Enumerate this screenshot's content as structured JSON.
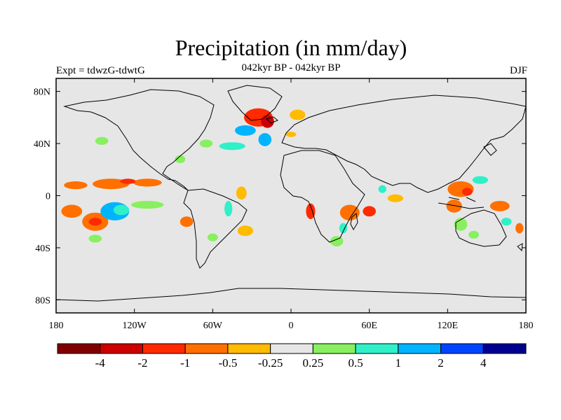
{
  "title": "Precipitation (in mm/day)",
  "subtitle": "042kyr BP - 042kyr BP",
  "left_label": "Expt = tdwzG-tdwtG",
  "right_label": "DJF",
  "map": {
    "lon_range": [
      -180,
      180
    ],
    "lat_range": [
      -90,
      90
    ],
    "background_color": "#e6e6e6",
    "y_ticks": [
      {
        "lat": 80,
        "label": "80N"
      },
      {
        "lat": 40,
        "label": "40N"
      },
      {
        "lat": 0,
        "label": "0"
      },
      {
        "lat": -40,
        "label": "40S"
      },
      {
        "lat": -80,
        "label": "80S"
      }
    ],
    "x_ticks": [
      {
        "lon": -180,
        "label": "180"
      },
      {
        "lon": -120,
        "label": "120W"
      },
      {
        "lon": -60,
        "label": "60W"
      },
      {
        "lon": 0,
        "label": "0"
      },
      {
        "lon": 60,
        "label": "60E"
      },
      {
        "lon": 120,
        "label": "120E"
      },
      {
        "lon": 180,
        "label": "180"
      }
    ]
  },
  "colorbar": {
    "colors": [
      "#800000",
      "#cc0000",
      "#ff2a00",
      "#ff7000",
      "#ffbb00",
      "#e6e6e6",
      "#88f060",
      "#30f0c8",
      "#00b4ff",
      "#0044ff",
      "#000090"
    ],
    "labels": [
      "-4",
      "-2",
      "-1",
      "-0.5",
      "-0.25",
      "0.25",
      "0.5",
      "1",
      "2",
      "4"
    ]
  },
  "anomalies": [
    {
      "lon": -165,
      "lat": 8,
      "w": 18,
      "h": 3,
      "level": 3
    },
    {
      "lon": -138,
      "lat": 9,
      "w": 28,
      "h": 4,
      "level": 3
    },
    {
      "lon": -110,
      "lat": 10,
      "w": 22,
      "h": 3,
      "level": 3
    },
    {
      "lon": -125,
      "lat": 11,
      "w": 12,
      "h": 2,
      "level": 2
    },
    {
      "lon": -168,
      "lat": -12,
      "w": 16,
      "h": 5,
      "level": 3
    },
    {
      "lon": -150,
      "lat": -20,
      "w": 20,
      "h": 7,
      "level": 3
    },
    {
      "lon": -150,
      "lat": -20,
      "w": 10,
      "h": 3,
      "level": 2
    },
    {
      "lon": -135,
      "lat": -12,
      "w": 22,
      "h": 7,
      "level": 8
    },
    {
      "lon": -130,
      "lat": -11,
      "w": 12,
      "h": 4,
      "level": 7
    },
    {
      "lon": -110,
      "lat": -7,
      "w": 25,
      "h": 3,
      "level": 6
    },
    {
      "lon": -150,
      "lat": -33,
      "w": 10,
      "h": 3,
      "level": 6
    },
    {
      "lon": -80,
      "lat": -20,
      "w": 10,
      "h": 4,
      "level": 3
    },
    {
      "lon": -38,
      "lat": 2,
      "w": 8,
      "h": 5,
      "level": 4
    },
    {
      "lon": -48,
      "lat": -10,
      "w": 6,
      "h": 6,
      "level": 7
    },
    {
      "lon": -35,
      "lat": -27,
      "w": 12,
      "h": 4,
      "level": 4
    },
    {
      "lon": -60,
      "lat": -32,
      "w": 8,
      "h": 3,
      "level": 6
    },
    {
      "lon": -25,
      "lat": 60,
      "w": 22,
      "h": 7,
      "level": 2
    },
    {
      "lon": -18,
      "lat": 57,
      "w": 10,
      "h": 5,
      "level": 1
    },
    {
      "lon": -35,
      "lat": 50,
      "w": 16,
      "h": 4,
      "level": 8
    },
    {
      "lon": -20,
      "lat": 43,
      "w": 10,
      "h": 5,
      "level": 8
    },
    {
      "lon": -45,
      "lat": 38,
      "w": 20,
      "h": 3,
      "level": 7
    },
    {
      "lon": -65,
      "lat": 40,
      "w": 10,
      "h": 3,
      "level": 6
    },
    {
      "lon": -85,
      "lat": 28,
      "w": 8,
      "h": 3,
      "level": 6
    },
    {
      "lon": -145,
      "lat": 42,
      "w": 10,
      "h": 3,
      "level": 6
    },
    {
      "lon": 5,
      "lat": 62,
      "w": 12,
      "h": 4,
      "level": 4
    },
    {
      "lon": 0,
      "lat": 47,
      "w": 8,
      "h": 2,
      "level": 4
    },
    {
      "lon": 15,
      "lat": -12,
      "w": 7,
      "h": 6,
      "level": 2
    },
    {
      "lon": 45,
      "lat": -13,
      "w": 15,
      "h": 6,
      "level": 3
    },
    {
      "lon": 60,
      "lat": -12,
      "w": 10,
      "h": 4,
      "level": 2
    },
    {
      "lon": 40,
      "lat": -25,
      "w": 6,
      "h": 4,
      "level": 7
    },
    {
      "lon": 35,
      "lat": -35,
      "w": 10,
      "h": 4,
      "level": 6
    },
    {
      "lon": 80,
      "lat": -2,
      "w": 12,
      "h": 3,
      "level": 4
    },
    {
      "lon": 70,
      "lat": 5,
      "w": 6,
      "h": 3,
      "level": 7
    },
    {
      "lon": 130,
      "lat": 5,
      "w": 20,
      "h": 6,
      "level": 3
    },
    {
      "lon": 135,
      "lat": 3,
      "w": 8,
      "h": 3,
      "level": 2
    },
    {
      "lon": 145,
      "lat": 12,
      "w": 12,
      "h": 3,
      "level": 7
    },
    {
      "lon": 125,
      "lat": -8,
      "w": 12,
      "h": 5,
      "level": 3
    },
    {
      "lon": 160,
      "lat": -8,
      "w": 15,
      "h": 4,
      "level": 3
    },
    {
      "lon": 175,
      "lat": -25,
      "w": 6,
      "h": 4,
      "level": 3
    },
    {
      "lon": 130,
      "lat": -22,
      "w": 10,
      "h": 5,
      "level": 6
    },
    {
      "lon": 165,
      "lat": -20,
      "w": 8,
      "h": 3,
      "level": 7
    },
    {
      "lon": 140,
      "lat": -30,
      "w": 8,
      "h": 3,
      "level": 6
    }
  ]
}
